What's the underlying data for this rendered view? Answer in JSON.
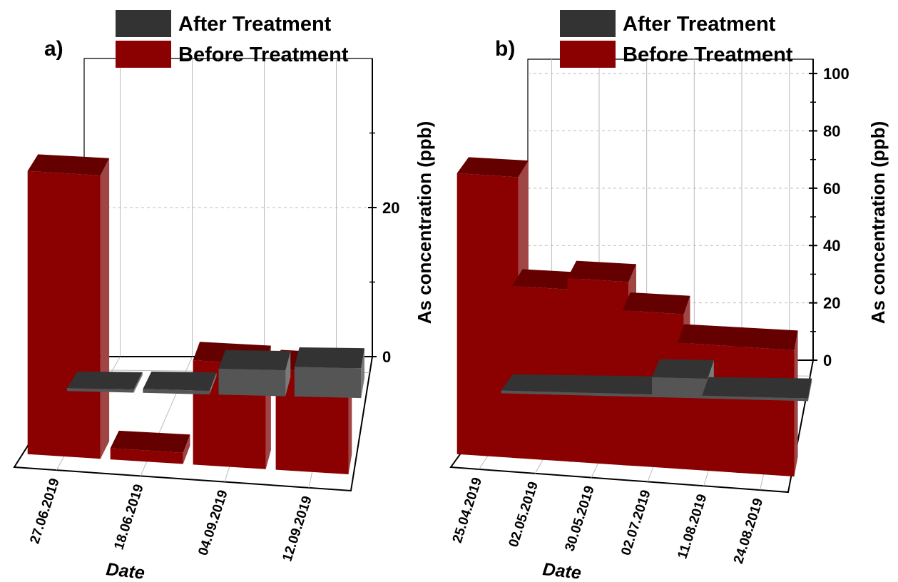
{
  "colors": {
    "before_front": "#8b0000",
    "before_top": "#650000",
    "before_side": "#a04545",
    "after_front": "#555555",
    "after_top": "#333333",
    "after_side": "#7a7a7a",
    "grid": "#bbbbbb"
  },
  "chart_data": [
    {
      "type": "bar",
      "panel_label": "a)",
      "legend_placement": "top",
      "xlabel": "Date",
      "ylabel": "As concentration (ppb)",
      "ylim": [
        0,
        40
      ],
      "yticks": [
        "0",
        "20"
      ],
      "categories": [
        "27.06.2019",
        "18.06.2019",
        "04.09.2019",
        "12.09.2019"
      ],
      "series": [
        {
          "name": "After Treatment",
          "values": [
            0.4,
            0.5,
            3.5,
            4.0
          ]
        },
        {
          "name": "Before Treatment",
          "values": [
            38,
            1.5,
            14,
            13.5
          ]
        }
      ]
    },
    {
      "type": "bar",
      "panel_label": "b)",
      "legend_placement": "top",
      "xlabel": "Date",
      "ylabel": "As concentration (ppb)",
      "ylim": [
        0,
        105
      ],
      "yticks": [
        "0",
        "20",
        "40",
        "60",
        "80",
        "100"
      ],
      "categories": [
        "25.04.2019",
        "02.05.2019",
        "30.05.2019",
        "02.07.2019",
        "11.08.2019",
        "24.08.2019"
      ],
      "series": [
        {
          "name": "After Treatment",
          "values": [
            1,
            1,
            1,
            7,
            1,
            1
          ]
        },
        {
          "name": "Before Treatment",
          "values": [
            98,
            60,
            64,
            54,
            44,
            44
          ]
        }
      ]
    }
  ]
}
